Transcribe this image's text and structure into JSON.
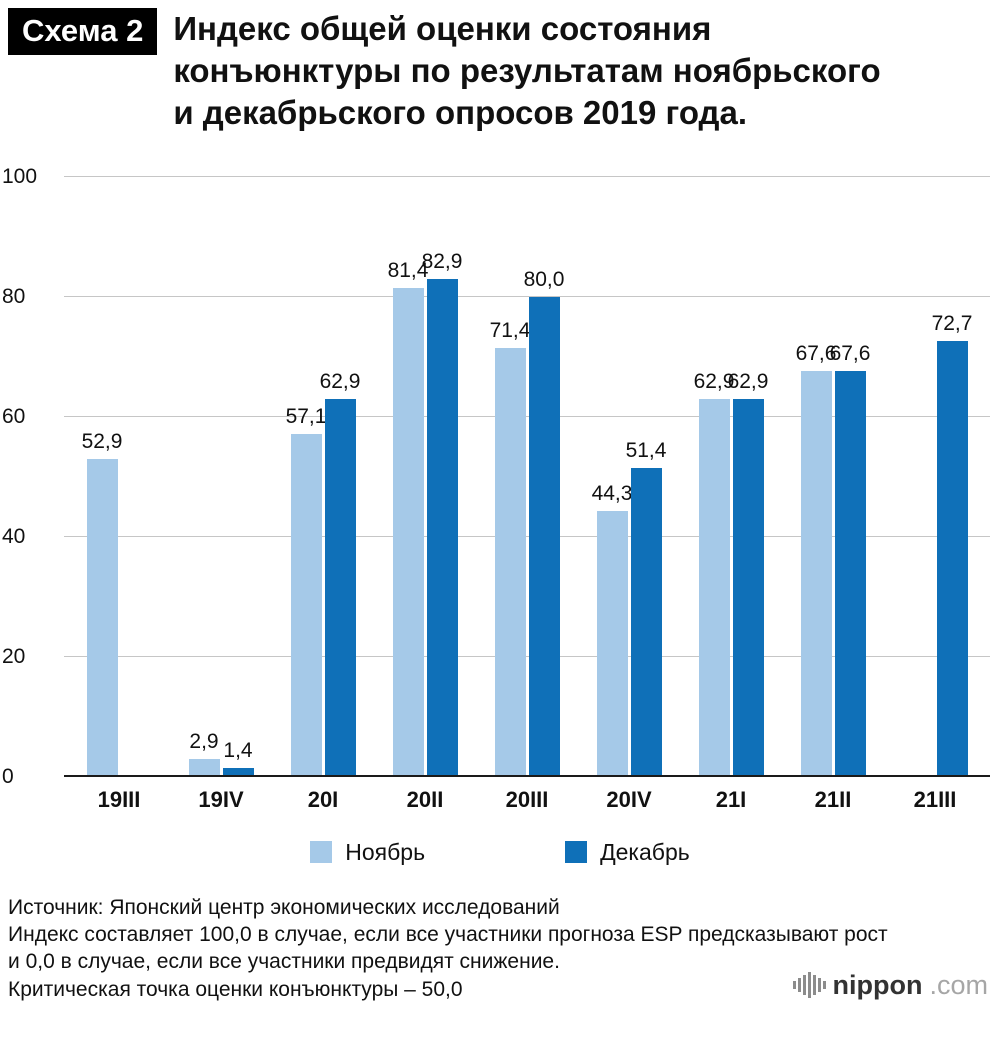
{
  "header": {
    "badge": "Схема 2",
    "title": "Индекс общей оценки состояния конъюнктуры по результатам ноябрьского и декабрьского опросов 2019 года."
  },
  "chart_data": {
    "type": "bar",
    "title": "Индекс общей оценки состояния конъюнктуры по результатам ноябрьского и декабрьского опросов 2019 года.",
    "categories": [
      "19III",
      "19IV",
      "20I",
      "20II",
      "20III",
      "20IV",
      "21I",
      "21II",
      "21III"
    ],
    "series": [
      {
        "name": "Ноябрь",
        "color": "#a5c9e8",
        "values": [
          52.9,
          2.9,
          57.1,
          81.4,
          71.4,
          44.3,
          62.9,
          67.6,
          null
        ]
      },
      {
        "name": "Декабрь",
        "color": "#0f70b8",
        "values": [
          null,
          1.4,
          62.9,
          82.9,
          80.0,
          51.4,
          62.9,
          67.6,
          72.7
        ]
      }
    ],
    "xlabel": "",
    "ylabel": "",
    "ylim": [
      0,
      100
    ],
    "yticks": [
      0,
      20,
      40,
      60,
      80,
      100
    ],
    "grid": true,
    "legend_position": "bottom",
    "decimal_separator": ","
  },
  "footer": {
    "lines": [
      "Источник: Японский центр экономических исследований",
      "Индекс составляет 100,0 в случае, если все участники прогноза ESP предсказывают рост и 0,0 в случае, если все участники предвидят снижение.",
      "Критическая точка оценки конъюнктуры – 50,0"
    ],
    "logo": {
      "name": "nippon",
      "suffix": ".com"
    }
  }
}
